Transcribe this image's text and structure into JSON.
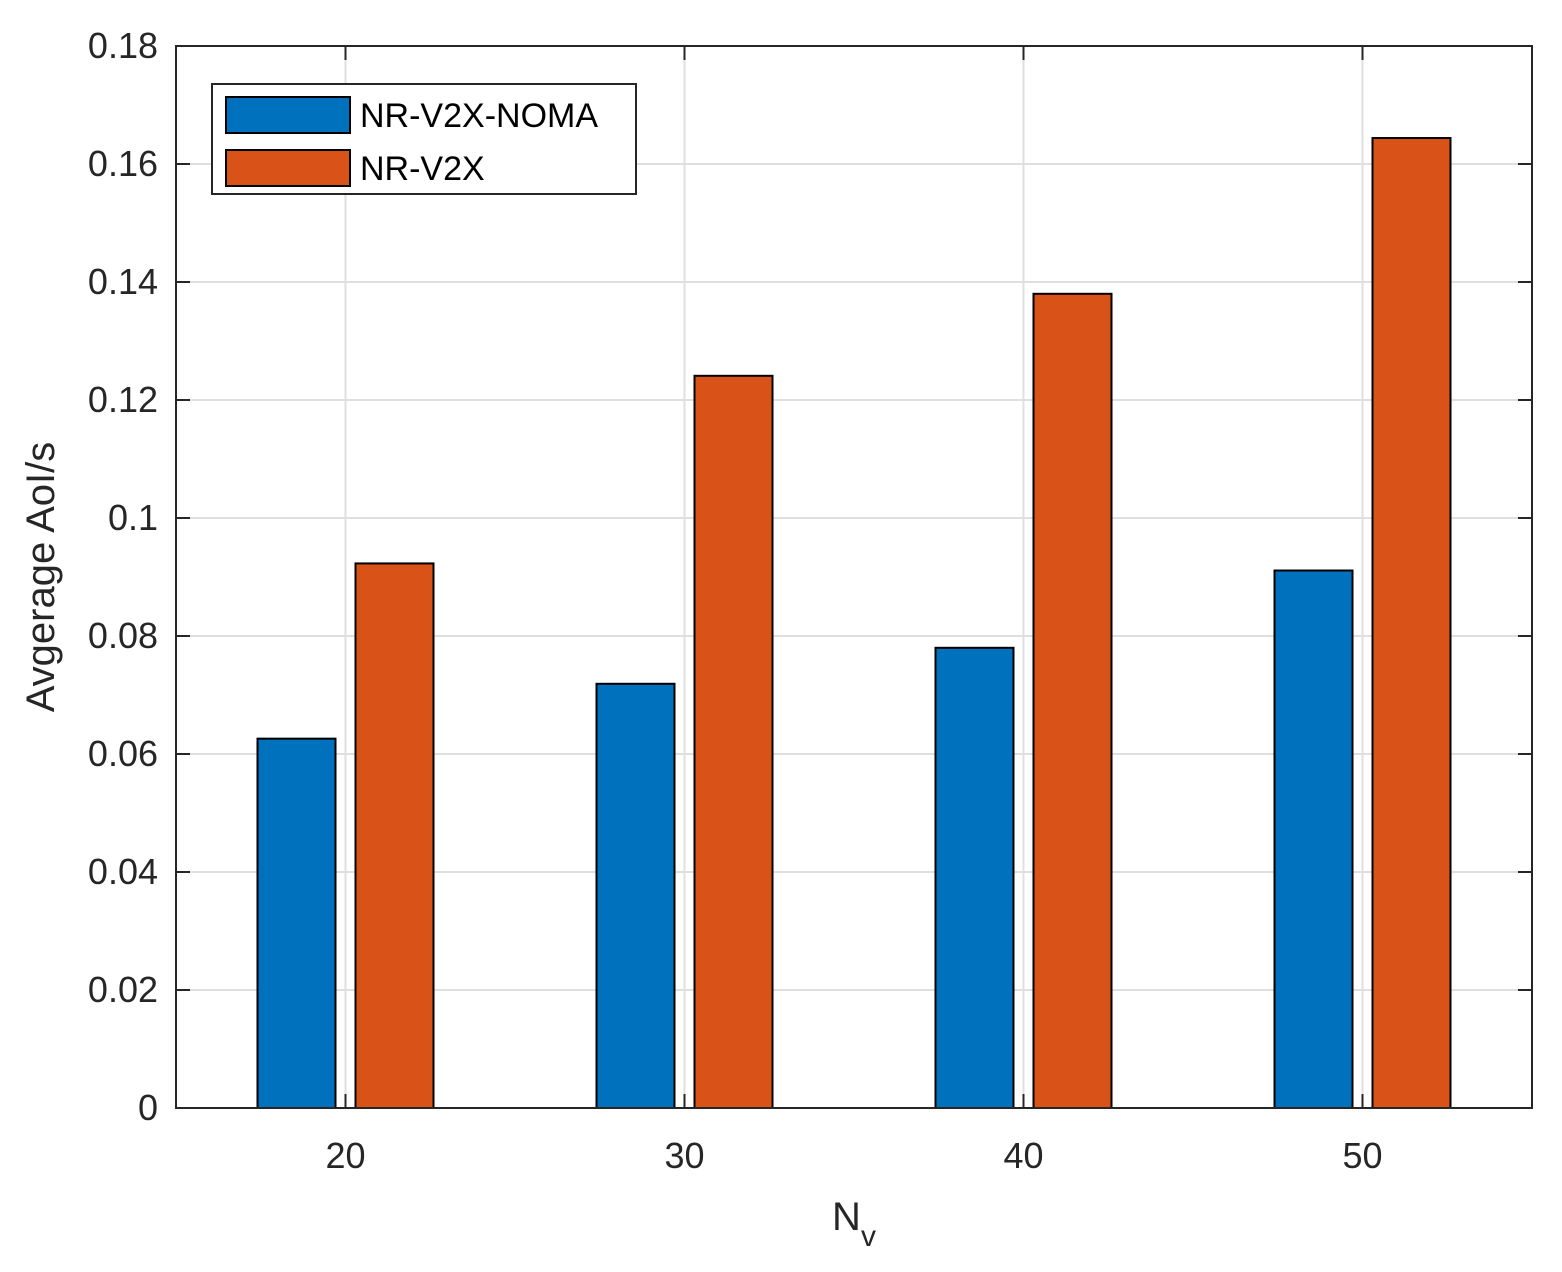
{
  "chart_data": {
    "type": "bar",
    "title": "",
    "xlabel": "N",
    "xlabel_subscript": "v",
    "ylabel": "Avgerage AoI/s",
    "categories": [
      "20",
      "30",
      "40",
      "50"
    ],
    "series": [
      {
        "name": "NR-V2X-NOMA",
        "color": "#0072BD",
        "values": [
          0.0626,
          0.0719,
          0.078,
          0.0911
        ]
      },
      {
        "name": "NR-V2X",
        "color": "#D95319",
        "values": [
          0.0923,
          0.1241,
          0.138,
          0.1644
        ]
      }
    ],
    "ylim": [
      0,
      0.18
    ],
    "yticks": [
      "0",
      "0.02",
      "0.04",
      "0.06",
      "0.08",
      "0.1",
      "0.12",
      "0.14",
      "0.16",
      "0.18"
    ],
    "ytick_values": [
      0,
      0.02,
      0.04,
      0.06,
      0.08,
      0.1,
      0.12,
      0.14,
      0.16,
      0.18
    ],
    "xlim": [
      15,
      55
    ],
    "x_values": [
      20,
      30,
      40,
      50
    ],
    "grid": true,
    "legend_position": "top-left"
  }
}
